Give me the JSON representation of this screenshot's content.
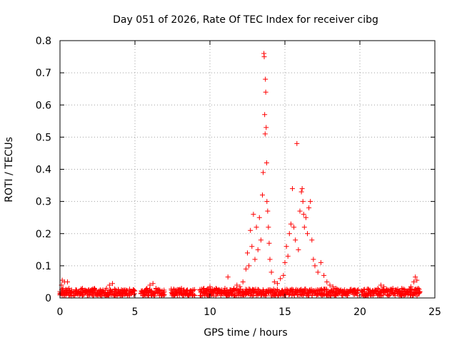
{
  "chart_data": {
    "type": "scatter",
    "title": "Day 051 of 2026, Rate Of TEC Index for receiver cibg",
    "xlabel": "GPS time / hours",
    "ylabel": "ROTI / TECUs",
    "xlim": [
      0,
      25
    ],
    "ylim": [
      0,
      0.8
    ],
    "xticks": [
      0,
      5,
      10,
      15,
      20,
      25
    ],
    "xtick_labels": [
      "0",
      "5",
      "10",
      "15",
      "20",
      "25"
    ],
    "yticks": [
      0,
      0.1,
      0.2,
      0.3,
      0.4,
      0.5,
      0.6,
      0.7,
      0.8
    ],
    "ytick_labels": [
      "0",
      "0.1",
      "0.2",
      "0.3",
      "0.4",
      "0.5",
      "0.6",
      "0.7",
      "0.8"
    ],
    "grid": true,
    "legend": "none",
    "marker": "+",
    "series": [
      {
        "name": "ROTI",
        "color": "#ff0000",
        "points": [
          [
            0.0,
            0.02
          ],
          [
            0.1,
            0.04
          ],
          [
            0.15,
            0.055
          ],
          [
            0.2,
            0.03
          ],
          [
            0.3,
            0.05
          ],
          [
            0.4,
            0.02
          ],
          [
            0.5,
            0.05
          ],
          [
            0.6,
            0.03
          ],
          [
            0.7,
            0.015
          ],
          [
            0.9,
            0.02
          ],
          [
            1.1,
            0.025
          ],
          [
            1.3,
            0.015
          ],
          [
            1.5,
            0.03
          ],
          [
            1.7,
            0.02
          ],
          [
            1.9,
            0.025
          ],
          [
            2.1,
            0.02
          ],
          [
            2.3,
            0.03
          ],
          [
            2.5,
            0.015
          ],
          [
            2.7,
            0.025
          ],
          [
            2.9,
            0.02
          ],
          [
            3.1,
            0.03
          ],
          [
            3.3,
            0.04
          ],
          [
            3.5,
            0.045
          ],
          [
            3.7,
            0.02
          ],
          [
            3.9,
            0.025
          ],
          [
            4.1,
            0.015
          ],
          [
            4.3,
            0.02
          ],
          [
            4.6,
            0.015
          ],
          [
            4.8,
            0.02
          ],
          [
            5.4,
            0.015
          ],
          [
            5.6,
            0.02
          ],
          [
            5.8,
            0.03
          ],
          [
            6.0,
            0.04
          ],
          [
            6.2,
            0.045
          ],
          [
            6.4,
            0.03
          ],
          [
            6.6,
            0.02
          ],
          [
            6.8,
            0.015
          ],
          [
            7.5,
            0.02
          ],
          [
            7.7,
            0.015
          ],
          [
            7.9,
            0.025
          ],
          [
            8.1,
            0.03
          ],
          [
            8.3,
            0.02
          ],
          [
            8.5,
            0.025
          ],
          [
            8.7,
            0.015
          ],
          [
            9.4,
            0.02
          ],
          [
            9.6,
            0.03
          ],
          [
            9.8,
            0.025
          ],
          [
            10.0,
            0.035
          ],
          [
            10.2,
            0.02
          ],
          [
            10.4,
            0.03
          ],
          [
            10.6,
            0.025
          ],
          [
            10.8,
            0.02
          ],
          [
            11.0,
            0.03
          ],
          [
            11.2,
            0.065
          ],
          [
            11.4,
            0.025
          ],
          [
            11.6,
            0.03
          ],
          [
            11.8,
            0.04
          ],
          [
            12.0,
            0.035
          ],
          [
            12.2,
            0.05
          ],
          [
            12.4,
            0.09
          ],
          [
            12.5,
            0.14
          ],
          [
            12.6,
            0.1
          ],
          [
            12.7,
            0.21
          ],
          [
            12.8,
            0.16
          ],
          [
            12.9,
            0.26
          ],
          [
            13.0,
            0.12
          ],
          [
            13.1,
            0.22
          ],
          [
            13.2,
            0.15
          ],
          [
            13.3,
            0.25
          ],
          [
            13.4,
            0.18
          ],
          [
            13.5,
            0.32
          ],
          [
            13.55,
            0.39
          ],
          [
            13.6,
            0.76
          ],
          [
            13.62,
            0.75
          ],
          [
            13.65,
            0.57
          ],
          [
            13.68,
            0.51
          ],
          [
            13.7,
            0.68
          ],
          [
            13.72,
            0.64
          ],
          [
            13.75,
            0.53
          ],
          [
            13.78,
            0.42
          ],
          [
            13.8,
            0.3
          ],
          [
            13.85,
            0.27
          ],
          [
            13.9,
            0.22
          ],
          [
            13.95,
            0.17
          ],
          [
            14.0,
            0.12
          ],
          [
            14.1,
            0.08
          ],
          [
            14.3,
            0.05
          ],
          [
            14.5,
            0.045
          ],
          [
            14.7,
            0.06
          ],
          [
            14.9,
            0.07
          ],
          [
            15.0,
            0.11
          ],
          [
            15.1,
            0.16
          ],
          [
            15.2,
            0.13
          ],
          [
            15.3,
            0.2
          ],
          [
            15.4,
            0.23
          ],
          [
            15.5,
            0.34
          ],
          [
            15.6,
            0.22
          ],
          [
            15.7,
            0.18
          ],
          [
            15.8,
            0.48
          ],
          [
            15.9,
            0.15
          ],
          [
            16.0,
            0.27
          ],
          [
            16.1,
            0.33
          ],
          [
            16.15,
            0.34
          ],
          [
            16.2,
            0.3
          ],
          [
            16.25,
            0.26
          ],
          [
            16.3,
            0.22
          ],
          [
            16.4,
            0.25
          ],
          [
            16.5,
            0.2
          ],
          [
            16.6,
            0.28
          ],
          [
            16.7,
            0.3
          ],
          [
            16.8,
            0.18
          ],
          [
            16.9,
            0.12
          ],
          [
            17.0,
            0.1
          ],
          [
            17.2,
            0.08
          ],
          [
            17.4,
            0.11
          ],
          [
            17.6,
            0.07
          ],
          [
            17.8,
            0.05
          ],
          [
            18.0,
            0.04
          ],
          [
            18.2,
            0.035
          ],
          [
            18.4,
            0.03
          ],
          [
            18.6,
            0.025
          ],
          [
            18.8,
            0.02
          ],
          [
            19.0,
            0.015
          ],
          [
            19.5,
            0.02
          ],
          [
            19.7,
            0.015
          ],
          [
            20.3,
            0.02
          ],
          [
            20.6,
            0.015
          ],
          [
            21.0,
            0.025
          ],
          [
            21.2,
            0.03
          ],
          [
            21.4,
            0.04
          ],
          [
            21.6,
            0.035
          ],
          [
            21.8,
            0.025
          ],
          [
            22.0,
            0.02
          ],
          [
            22.2,
            0.03
          ],
          [
            22.4,
            0.025
          ],
          [
            22.6,
            0.02
          ],
          [
            22.8,
            0.03
          ],
          [
            23.0,
            0.025
          ],
          [
            23.2,
            0.02
          ],
          [
            23.4,
            0.035
          ],
          [
            23.6,
            0.05
          ],
          [
            23.7,
            0.065
          ],
          [
            23.8,
            0.055
          ],
          [
            23.9,
            0.03
          ],
          [
            24.0,
            0.02
          ]
        ]
      }
    ],
    "background_bands": [
      [
        0.0,
        0.8
      ],
      [
        0.9,
        4.5
      ],
      [
        4.6,
        5.0
      ],
      [
        5.4,
        7.0
      ],
      [
        7.4,
        9.0
      ],
      [
        9.3,
        19.4
      ],
      [
        19.5,
        19.9
      ],
      [
        20.1,
        24.0
      ]
    ]
  }
}
